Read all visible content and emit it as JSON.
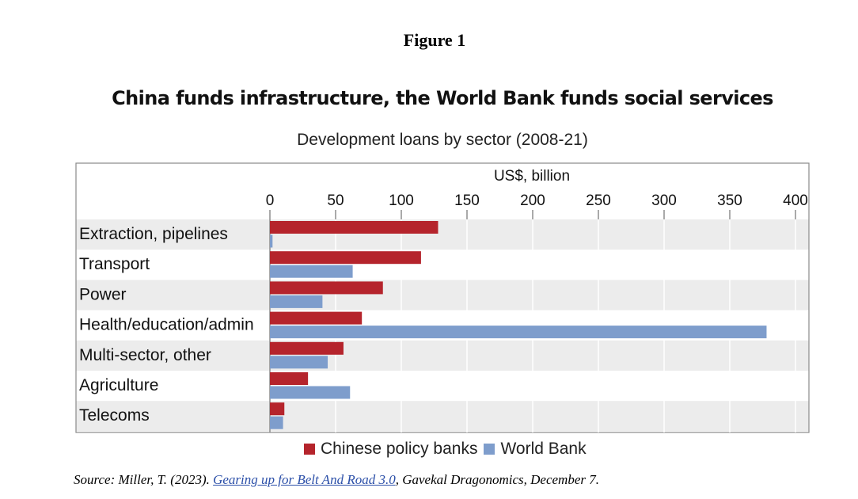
{
  "figure_label": "Figure 1",
  "chart_data": {
    "type": "bar",
    "orientation": "horizontal",
    "title": "China funds infrastructure, the World Bank funds social services",
    "subtitle": "Development loans by sector (2008-21)",
    "xlabel": "US$, billion",
    "xlim": [
      0,
      400
    ],
    "xticks": [
      0,
      50,
      100,
      150,
      200,
      250,
      300,
      350,
      400
    ],
    "categories": [
      "Extraction, pipelines",
      "Transport",
      "Power",
      "Health/education/admin",
      "Multi-sector, other",
      "Agriculture",
      "Telecoms"
    ],
    "series": [
      {
        "name": "Chinese policy banks",
        "color": "#b5242c",
        "values": [
          128,
          115,
          86,
          70,
          56,
          29,
          11
        ]
      },
      {
        "name": "World Bank",
        "color": "#7e9dcc",
        "values": [
          2,
          63,
          40,
          378,
          44,
          61,
          10
        ]
      }
    ],
    "legend_position": "bottom",
    "row_stripes": true
  },
  "source": {
    "prefix": "Source: Miller, T. (2023). ",
    "link_text": "Gearing up for Belt And Road 3.0",
    "suffix": ", Gavekal Dragonomics, December 7."
  }
}
